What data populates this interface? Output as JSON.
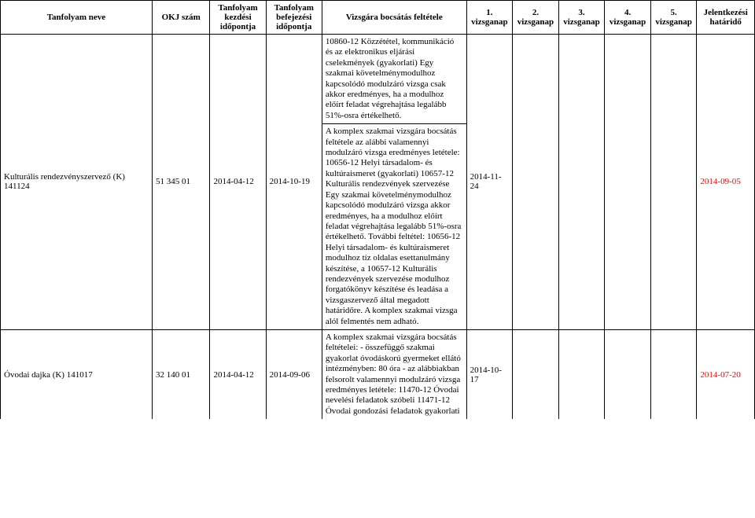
{
  "headers": {
    "name": "Tanfolyam neve",
    "okj": "OKJ szám",
    "start": "Tanfolyam kezdési időpontja",
    "end": "Tanfolyam befejezési időpontja",
    "cond": "Vizsgára bocsátás feltétele",
    "day1": "1. vizsganap",
    "day2": "2. vizsganap",
    "day3": "3. vizsganap",
    "day4": "4. vizsganap",
    "day5": "5. vizsganap",
    "deadline": "Jelentkezési határidő"
  },
  "rows": [
    {
      "name": "Kulturális rendezvényszervező (K) 141124",
      "okj": "51 345 01",
      "start": "2014-04-12",
      "end": "2014-10-19",
      "cond1": "10860-12 Közzététel, kommunikáció és az elektronikus eljárási cselekmények (gyakorlati) Egy szakmai követelménymodulhoz kapcsolódó modulzáró vizsga csak akkor eredményes, ha a modulhoz előírt feladat végrehajtása legalább 51%-osra értékelhető.",
      "cond2": "A komplex szakmai vizsgára bocsátás feltétele az alábbi valamennyi modulzáró vizsga eredményes letétele: 10656-12 Helyi társadalom- és kultúraismeret (gyakorlati) 10657-12 Kulturális rendezvények szervezése Egy szakmai követelménymodulhoz kapcsolódó modulzáró vizsga akkor eredményes, ha a modulhoz előírt feladat végrehajtása legalább 51%-osra értékelhető. További feltétel: 10656-12 Helyi társadalom- és kultúraismeret modulhoz tíz oldalas esettanulmány készítése, a 10657-12 Kulturális rendezvények szervezése modulhoz forgatókönyv készítése és leadása a vizsgaszervező által megadott határidőre. A komplex szakmai vizsga alól felmentés nem adható.",
      "day1": "2014-11-24",
      "day2": "",
      "day3": "",
      "day4": "",
      "day5": "",
      "deadline": "2014-09-05"
    },
    {
      "name": "Óvodai dajka (K) 141017",
      "okj": "32 140 01",
      "start": "2014-04-12",
      "end": "2014-09-06",
      "cond": "A komplex szakmai vizsgára bocsátás feltételei: - összefüggő szakmai gyakorlat óvodáskorú gyermeket ellátó intézményben: 80 óra - az alábbiakban felsorolt valamennyi modulzáró vizsga eredményes letétele: 11470-12 Óvodai nevelési feladatok szóbeli 11471-12 Óvodai gondozási feladatok gyakorlati",
      "day1": "2014-10-17",
      "day2": "",
      "day3": "",
      "day4": "",
      "day5": "",
      "deadline": "2014-07-20"
    }
  ],
  "colors": {
    "deadline_text": "#ff0000",
    "border": "#000000",
    "background": "#ffffff"
  }
}
